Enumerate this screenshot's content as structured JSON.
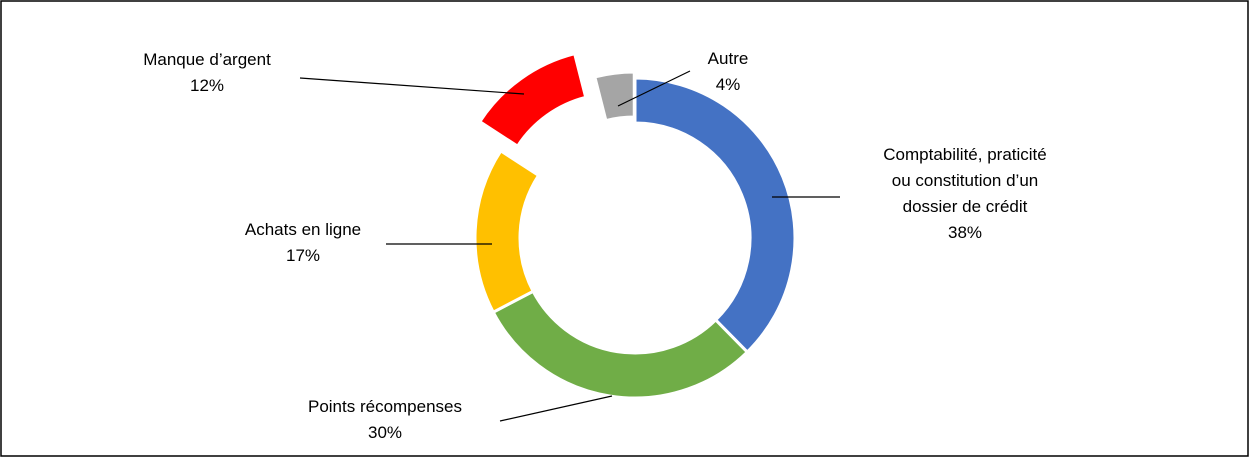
{
  "chart_data": {
    "type": "donut",
    "categories": [
      "Comptabilité, praticité ou constitution d’un dossier de crédit",
      "Points récompenses",
      "Achats en ligne",
      "Manque d’argent",
      "Autre"
    ],
    "values": [
      38,
      30,
      17,
      12,
      4
    ],
    "value_labels": [
      "38%",
      "30%",
      "17%",
      "12%",
      "4%"
    ],
    "colors": [
      "#4472c4",
      "#70ad47",
      "#ffc000",
      "#ff0000",
      "#a5a5a5"
    ]
  }
}
